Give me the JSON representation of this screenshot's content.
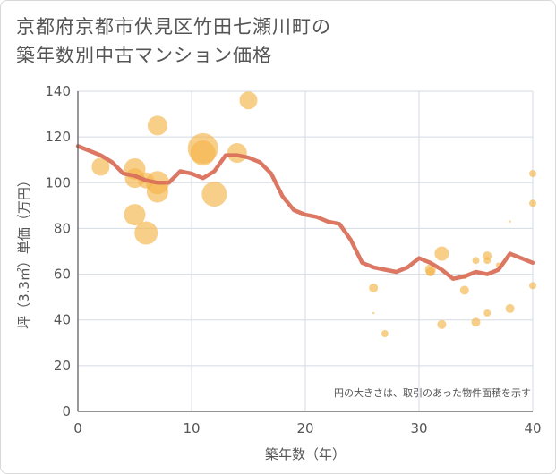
{
  "title_line1": "京都府京都市伏見区竹田七瀬川町の",
  "title_line2": "築年数別中古マンション価格",
  "chart_data": {
    "type": "scatter",
    "xlabel": "築年数（年）",
    "ylabel": "坪（3.3㎡）単価（万円）",
    "xlim": [
      0,
      40
    ],
    "ylim": [
      0,
      140
    ],
    "xticks": [
      0,
      10,
      20,
      30,
      40
    ],
    "yticks": [
      0,
      20,
      40,
      60,
      80,
      100,
      120,
      140
    ],
    "grid": true,
    "note": "円の大きさは、取引のあった物件面積を示す",
    "colors": {
      "bubble": "#f5b54a",
      "line": "#d9705a",
      "grid": "#d3dbe3",
      "axis": "#555555"
    },
    "points": [
      {
        "x": 2,
        "y": 107,
        "s": 10
      },
      {
        "x": 5,
        "y": 106,
        "s": 12
      },
      {
        "x": 5,
        "y": 102,
        "s": 11
      },
      {
        "x": 5,
        "y": 86,
        "s": 12
      },
      {
        "x": 6,
        "y": 78,
        "s": 13
      },
      {
        "x": 6,
        "y": 101,
        "s": 9
      },
      {
        "x": 7,
        "y": 125,
        "s": 11
      },
      {
        "x": 7,
        "y": 100,
        "s": 13
      },
      {
        "x": 7,
        "y": 96,
        "s": 12
      },
      {
        "x": 11,
        "y": 115,
        "s": 17
      },
      {
        "x": 11,
        "y": 113,
        "s": 14
      },
      {
        "x": 12,
        "y": 95,
        "s": 14
      },
      {
        "x": 14,
        "y": 113,
        "s": 11
      },
      {
        "x": 15,
        "y": 136,
        "s": 10
      },
      {
        "x": 26,
        "y": 54,
        "s": 5
      },
      {
        "x": 26,
        "y": 43,
        "s": 1
      },
      {
        "x": 27,
        "y": 34,
        "s": 4
      },
      {
        "x": 31,
        "y": 62,
        "s": 6
      },
      {
        "x": 31,
        "y": 61,
        "s": 5
      },
      {
        "x": 32,
        "y": 69,
        "s": 8
      },
      {
        "x": 32,
        "y": 38,
        "s": 5
      },
      {
        "x": 34,
        "y": 53,
        "s": 5
      },
      {
        "x": 34,
        "y": 59,
        "s": 3
      },
      {
        "x": 35,
        "y": 66,
        "s": 4
      },
      {
        "x": 35,
        "y": 39,
        "s": 5
      },
      {
        "x": 36,
        "y": 68,
        "s": 5
      },
      {
        "x": 36,
        "y": 66,
        "s": 4
      },
      {
        "x": 36,
        "y": 43,
        "s": 4
      },
      {
        "x": 37,
        "y": 64,
        "s": 3
      },
      {
        "x": 38,
        "y": 83,
        "s": 1
      },
      {
        "x": 38,
        "y": 45,
        "s": 5
      },
      {
        "x": 40,
        "y": 104,
        "s": 4
      },
      {
        "x": 40,
        "y": 91,
        "s": 4
      },
      {
        "x": 40,
        "y": 55,
        "s": 4
      }
    ],
    "trend": {
      "x": [
        0,
        1,
        2,
        3,
        4,
        5,
        6,
        7,
        8,
        9,
        10,
        11,
        12,
        13,
        14,
        15,
        16,
        17,
        18,
        19,
        20,
        21,
        22,
        23,
        24,
        25,
        26,
        27,
        28,
        29,
        30,
        31,
        32,
        33,
        34,
        35,
        36,
        37,
        38,
        39,
        40
      ],
      "y": [
        116,
        114,
        112,
        109,
        104,
        103,
        101,
        100,
        100,
        105,
        104,
        102,
        105,
        112,
        112,
        111,
        109,
        104,
        94,
        88,
        86,
        85,
        83,
        82,
        75,
        65,
        63,
        62,
        61,
        63,
        67,
        65,
        62,
        58,
        59,
        61,
        60,
        62,
        69,
        67,
        65
      ]
    }
  }
}
